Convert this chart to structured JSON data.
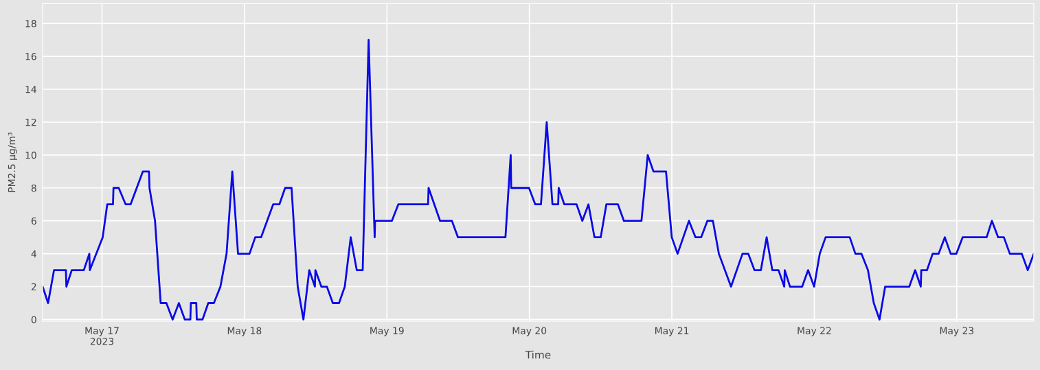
{
  "chart_data": {
    "type": "line",
    "xlabel": "Time",
    "ylabel": "PM2.5 µg/m³",
    "x": [
      "2023-05-16T14:00",
      "2023-05-16T14:55",
      "2023-05-16T15:55",
      "2023-05-16T17:55",
      "2023-05-16T18:00",
      "2023-05-16T18:54",
      "2023-05-16T20:56",
      "2023-05-16T21:52",
      "2023-05-16T21:57",
      "2023-05-17T00:07",
      "2023-05-17T00:53",
      "2023-05-17T01:51",
      "2023-05-17T01:56",
      "2023-05-17T02:49",
      "2023-05-17T03:59",
      "2023-05-17T04:49",
      "2023-05-17T06:53",
      "2023-05-17T07:55",
      "2023-05-17T08:00",
      "2023-05-17T08:56",
      "2023-05-17T09:53",
      "2023-05-17T10:51",
      "2023-05-17T11:54",
      "2023-05-17T12:57",
      "2023-05-17T13:57",
      "2023-05-17T14:53",
      "2023-05-17T14:58",
      "2023-05-17T15:53",
      "2023-05-17T15:58",
      "2023-05-17T16:56",
      "2023-05-17T17:54",
      "2023-05-17T18:51",
      "2023-05-17T19:57",
      "2023-05-17T20:59",
      "2023-05-17T21:57",
      "2023-05-17T22:55",
      "2023-05-18T00:51",
      "2023-05-18T01:49",
      "2023-05-18T02:48",
      "2023-05-18T04:50",
      "2023-05-18T05:53",
      "2023-05-18T06:51",
      "2023-05-18T07:56",
      "2023-05-18T08:58",
      "2023-05-18T09:56",
      "2023-05-18T10:55",
      "2023-05-18T11:52",
      "2023-05-18T11:57",
      "2023-05-18T12:57",
      "2023-05-18T13:53",
      "2023-05-18T14:53",
      "2023-05-18T15:56",
      "2023-05-18T16:54",
      "2023-05-18T17:54",
      "2023-05-18T18:55",
      "2023-05-18T19:55",
      "2023-05-18T20:55",
      "2023-05-18T21:56",
      "2023-05-18T22:00",
      "2023-05-19T00:50",
      "2023-05-19T01:55",
      "2023-05-19T06:56",
      "2023-05-19T07:01",
      "2023-05-19T08:57",
      "2023-05-19T10:57",
      "2023-05-19T11:58",
      "2023-05-19T19:58",
      "2023-05-19T20:51",
      "2023-05-19T20:56",
      "2023-05-19T23:56",
      "2023-05-20T00:59",
      "2023-05-20T01:57",
      "2023-05-20T02:55",
      "2023-05-20T03:53",
      "2023-05-20T04:51",
      "2023-05-20T04:56",
      "2023-05-20T05:53",
      "2023-05-20T07:57",
      "2023-05-20T08:55",
      "2023-05-20T09:57",
      "2023-05-20T10:58",
      "2023-05-20T12:01",
      "2023-05-20T12:58",
      "2023-05-20T14:55",
      "2023-05-20T15:55",
      "2023-05-20T18:53",
      "2023-05-20T19:56",
      "2023-05-20T20:54",
      "2023-05-20T23:01",
      "2023-05-20T23:59",
      "2023-05-21T00:58",
      "2023-05-21T02:53",
      "2023-05-21T03:59",
      "2023-05-21T04:56",
      "2023-05-21T05:59",
      "2023-05-21T06:55",
      "2023-05-21T07:55",
      "2023-05-21T09:58",
      "2023-05-21T11:54",
      "2023-05-21T12:52",
      "2023-05-21T13:55",
      "2023-05-21T15:00",
      "2023-05-21T15:58",
      "2023-05-21T16:55",
      "2023-05-21T17:58",
      "2023-05-21T18:56",
      "2023-05-21T19:01",
      "2023-05-21T19:54",
      "2023-05-21T21:57",
      "2023-05-21T22:57",
      "2023-05-21T23:58",
      "2023-05-22T00:55",
      "2023-05-22T01:54",
      "2023-05-22T05:58",
      "2023-05-22T06:55",
      "2023-05-22T07:56",
      "2023-05-22T09:02",
      "2023-05-22T10:01",
      "2023-05-22T10:59",
      "2023-05-22T11:56",
      "2023-05-22T16:00",
      "2023-05-22T16:59",
      "2023-05-22T17:56",
      "2023-05-22T18:01",
      "2023-05-22T18:59",
      "2023-05-22T19:56",
      "2023-05-22T20:57",
      "2023-05-22T21:59",
      "2023-05-22T22:58",
      "2023-05-22T23:56",
      "2023-05-23T00:59",
      "2023-05-23T05:02",
      "2023-05-23T05:55",
      "2023-05-23T06:58",
      "2023-05-23T07:56",
      "2023-05-23T08:56",
      "2023-05-23T10:57",
      "2023-05-23T11:57",
      "2023-05-23T12:58"
    ],
    "series": [
      {
        "color": "#0a0ae6",
        "values": [
          2,
          1,
          3,
          3,
          2,
          3,
          3,
          4,
          3,
          5,
          7,
          7,
          8,
          8,
          7,
          7,
          9,
          9,
          8,
          6,
          1,
          1,
          0,
          1,
          0,
          0,
          1,
          1,
          0,
          0,
          1,
          1,
          2,
          4,
          9,
          4,
          4,
          5,
          5,
          7,
          7,
          8,
          8,
          2,
          0,
          3,
          2,
          3,
          2,
          2,
          1,
          1,
          2,
          5,
          3,
          3,
          17,
          5,
          6,
          6,
          7,
          7,
          8,
          6,
          6,
          5,
          5,
          10,
          8,
          8,
          7,
          7,
          12,
          7,
          7,
          8,
          7,
          7,
          6,
          7,
          5,
          5,
          7,
          7,
          6,
          6,
          10,
          9,
          9,
          5,
          4,
          6,
          5,
          5,
          6,
          6,
          4,
          2,
          4,
          4,
          3,
          3,
          5,
          3,
          3,
          2,
          3,
          2,
          2,
          3,
          2,
          4,
          5,
          5,
          4,
          4,
          3,
          1,
          0,
          2,
          2,
          3,
          2,
          3,
          3,
          4,
          4,
          5,
          4,
          4,
          5,
          5,
          6,
          5,
          5,
          4,
          4,
          3,
          4
        ]
      }
    ],
    "xlim": [
      "2023-05-16T14:00",
      "2023-05-23T12:58"
    ],
    "xticks": [
      {
        "value": "2023-05-17",
        "label": "May 17\n2023"
      },
      {
        "value": "2023-05-18",
        "label": "May 18"
      },
      {
        "value": "2023-05-19",
        "label": "May 19"
      },
      {
        "value": "2023-05-20",
        "label": "May 20"
      },
      {
        "value": "2023-05-21",
        "label": "May 21"
      },
      {
        "value": "2023-05-22",
        "label": "May 22"
      },
      {
        "value": "2023-05-23",
        "label": "May 23"
      }
    ],
    "ylim": [
      -0.1,
      19.2
    ],
    "yticks": [
      0,
      2,
      4,
      6,
      8,
      10,
      12,
      14,
      16,
      18
    ],
    "grid": true
  }
}
